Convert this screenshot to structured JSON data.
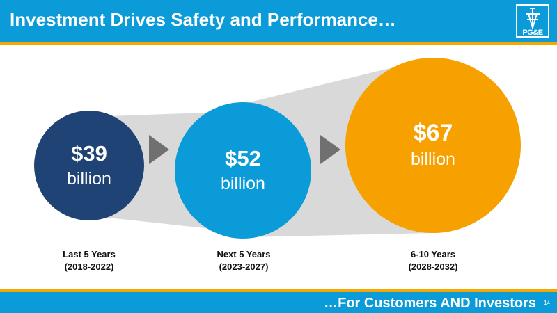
{
  "header": {
    "title": "Investment Drives Safety and Performance…",
    "logo_text": "PG&E",
    "colors": {
      "bar": "#0a9bd8",
      "accent": "#f6a800"
    }
  },
  "periods": [
    {
      "amount": "$39",
      "unit": "billion",
      "label": "Last 5 Years",
      "range": "(2018-2022)",
      "color": "#1f4374"
    },
    {
      "amount": "$52",
      "unit": "billion",
      "label": "Next 5 Years",
      "range": "(2023-2027)",
      "color": "#0a9bd8"
    },
    {
      "amount": "$67",
      "unit": "billion",
      "label": "6-10 Years",
      "range": "(2028-2032)",
      "color": "#f6a100"
    }
  ],
  "arrow_icon": "play-arrow-icon",
  "footer": {
    "tagline": "…For Customers AND Investors",
    "page_number": "14"
  }
}
